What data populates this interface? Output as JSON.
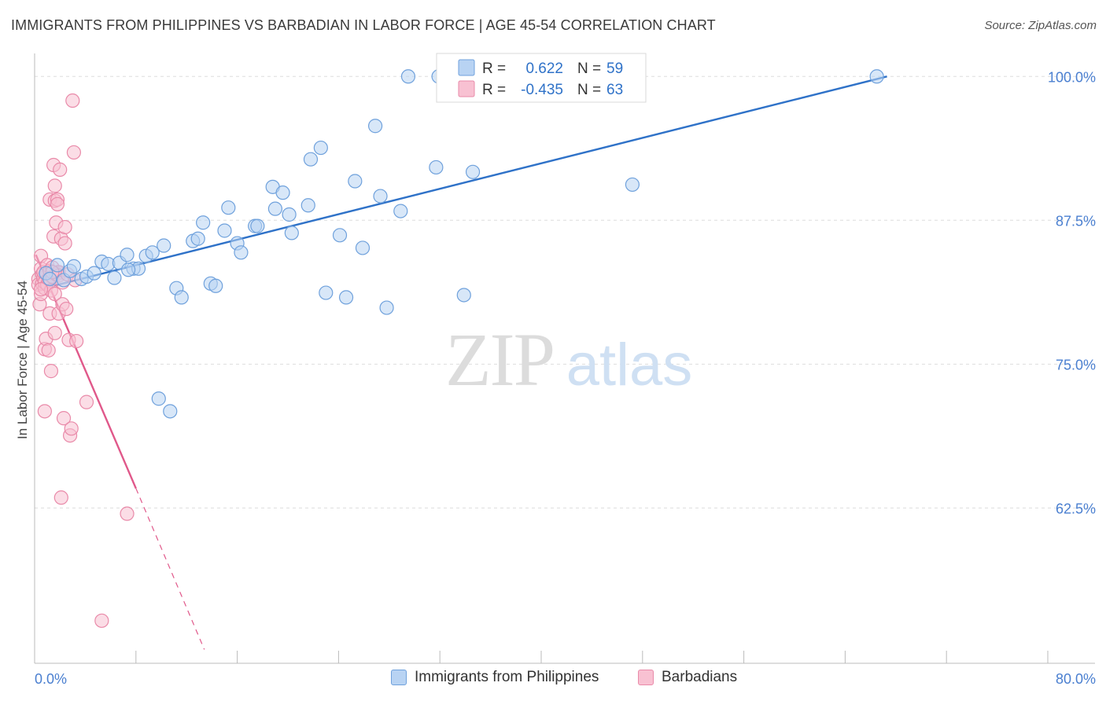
{
  "header": {
    "title": "IMMIGRANTS FROM PHILIPPINES VS BARBADIAN IN LABOR FORCE | AGE 45-54 CORRELATION CHART",
    "source": "Source: ZipAtlas.com"
  },
  "watermark": {
    "zip": "ZIP",
    "atlas": "atlas"
  },
  "colors": {
    "blue_fill": "#b8d3f3",
    "blue_stroke": "#6fa1dc",
    "blue_line": "#2f72c8",
    "pink_fill": "#f8c1d2",
    "pink_stroke": "#e98aa9",
    "pink_line": "#e0588a",
    "tick_label": "#4a7fd0",
    "grid": "#dddddd"
  },
  "legend_top": [
    {
      "r_label": "R =",
      "r_value": "0.622",
      "n_label": "N =",
      "n_value": "59"
    },
    {
      "r_label": "R =",
      "r_value": "-0.435",
      "n_label": "N =",
      "n_value": "63"
    }
  ],
  "legend_bottom": [
    {
      "label": "Immigrants from Philippines"
    },
    {
      "label": "Barbadians"
    }
  ],
  "chart_data": {
    "type": "scatter",
    "title": "IMMIGRANTS FROM PHILIPPINES VS BARBADIAN IN LABOR FORCE | AGE 45-54 CORRELATION CHART",
    "xlabel": "",
    "ylabel": "In Labor Force | Age 45-54",
    "xlim": [
      0,
      80
    ],
    "ylim": [
      49,
      102
    ],
    "x_tick_labels": [
      "0.0%",
      "80.0%"
    ],
    "y_ticks": [
      62.5,
      75.0,
      87.5,
      100.0
    ],
    "y_tick_labels": [
      "62.5%",
      "75.0%",
      "87.5%",
      "100.0%"
    ],
    "grid": true,
    "legend": "top-center",
    "series": [
      {
        "name": "Immigrants from Philippines",
        "color": "#6fa1dc",
        "trend": {
          "x": [
            0.4,
            67.3
          ],
          "y": [
            81.5,
            100.0
          ],
          "style": "solid"
        },
        "points": [
          [
            0.9,
            82.9
          ],
          [
            1.2,
            82.4
          ],
          [
            1.8,
            83.6
          ],
          [
            2.3,
            82.3
          ],
          [
            2.8,
            83.1
          ],
          [
            3.1,
            83.5
          ],
          [
            3.7,
            82.4
          ],
          [
            4.1,
            82.6
          ],
          [
            4.7,
            82.9
          ],
          [
            5.3,
            83.9
          ],
          [
            5.8,
            83.7
          ],
          [
            6.3,
            82.5
          ],
          [
            6.7,
            83.8
          ],
          [
            7.3,
            84.5
          ],
          [
            7.8,
            83.3
          ],
          [
            8.2,
            83.3
          ],
          [
            8.8,
            84.4
          ],
          [
            9.3,
            84.7
          ],
          [
            10.2,
            85.3
          ],
          [
            11.2,
            81.6
          ],
          [
            11.6,
            80.8
          ],
          [
            12.5,
            85.7
          ],
          [
            12.9,
            85.9
          ],
          [
            13.3,
            87.3
          ],
          [
            13.9,
            82.0
          ],
          [
            14.3,
            81.8
          ],
          [
            15.0,
            86.6
          ],
          [
            15.3,
            88.6
          ],
          [
            16.0,
            85.5
          ],
          [
            16.3,
            84.7
          ],
          [
            17.4,
            87.0
          ],
          [
            17.6,
            87.0
          ],
          [
            18.8,
            90.4
          ],
          [
            19.0,
            88.5
          ],
          [
            19.6,
            89.9
          ],
          [
            20.1,
            88.0
          ],
          [
            20.3,
            86.4
          ],
          [
            21.6,
            88.8
          ],
          [
            21.8,
            92.8
          ],
          [
            22.6,
            93.8
          ],
          [
            23.0,
            81.2
          ],
          [
            24.1,
            86.2
          ],
          [
            24.6,
            80.8
          ],
          [
            25.3,
            90.9
          ],
          [
            25.9,
            85.1
          ],
          [
            26.9,
            95.7
          ],
          [
            27.3,
            89.6
          ],
          [
            27.8,
            79.9
          ],
          [
            28.9,
            88.3
          ],
          [
            29.5,
            100.0
          ],
          [
            31.7,
            92.1
          ],
          [
            31.9,
            100.0
          ],
          [
            33.9,
            81.0
          ],
          [
            34.6,
            91.7
          ],
          [
            47.2,
            90.6
          ],
          [
            66.5,
            100.0
          ],
          [
            9.8,
            72.0
          ],
          [
            10.7,
            70.9
          ],
          [
            7.4,
            83.2
          ]
        ]
      },
      {
        "name": "Barbadians",
        "color": "#e98aa9",
        "trend": {
          "x": [
            0.1,
            8.0
          ],
          "y": [
            84.5,
            64.2
          ],
          "style": "solid",
          "extension": {
            "x": [
              8.0,
              13.4
            ],
            "y": [
              64.2,
              50.2
            ],
            "style": "dashed"
          }
        },
        "points": [
          [
            0.3,
            82.4
          ],
          [
            0.3,
            81.9
          ],
          [
            0.4,
            80.2
          ],
          [
            0.5,
            83.3
          ],
          [
            0.5,
            84.4
          ],
          [
            0.5,
            81.1
          ],
          [
            0.6,
            82.8
          ],
          [
            0.6,
            82.0
          ],
          [
            0.7,
            82.5
          ],
          [
            0.7,
            83.0
          ],
          [
            0.8,
            81.6
          ],
          [
            0.8,
            82.1
          ],
          [
            0.8,
            76.3
          ],
          [
            0.8,
            70.9
          ],
          [
            0.9,
            82.9
          ],
          [
            0.9,
            77.2
          ],
          [
            1.0,
            83.6
          ],
          [
            1.0,
            81.9
          ],
          [
            1.1,
            82.4
          ],
          [
            1.1,
            76.2
          ],
          [
            1.2,
            83.1
          ],
          [
            1.2,
            79.4
          ],
          [
            1.2,
            89.3
          ],
          [
            1.3,
            81.4
          ],
          [
            1.3,
            74.4
          ],
          [
            1.4,
            82.6
          ],
          [
            1.4,
            83.4
          ],
          [
            1.5,
            86.1
          ],
          [
            1.5,
            92.3
          ],
          [
            1.6,
            89.2
          ],
          [
            1.6,
            90.5
          ],
          [
            1.6,
            81.1
          ],
          [
            1.6,
            77.7
          ],
          [
            1.7,
            87.3
          ],
          [
            1.7,
            82.8
          ],
          [
            1.8,
            89.3
          ],
          [
            1.8,
            88.9
          ],
          [
            1.9,
            82.9
          ],
          [
            1.9,
            83.0
          ],
          [
            1.9,
            82.7
          ],
          [
            1.9,
            79.4
          ],
          [
            2.0,
            91.9
          ],
          [
            2.1,
            85.9
          ],
          [
            2.2,
            82.1
          ],
          [
            2.2,
            80.2
          ],
          [
            2.3,
            70.3
          ],
          [
            2.4,
            86.9
          ],
          [
            2.4,
            85.5
          ],
          [
            2.5,
            79.8
          ],
          [
            2.6,
            82.8
          ],
          [
            2.7,
            77.1
          ],
          [
            2.8,
            68.8
          ],
          [
            2.9,
            69.4
          ],
          [
            3.0,
            97.9
          ],
          [
            3.1,
            93.4
          ],
          [
            3.3,
            77.0
          ],
          [
            3.2,
            82.3
          ],
          [
            4.1,
            71.7
          ],
          [
            2.1,
            63.4
          ],
          [
            7.3,
            62.0
          ],
          [
            5.3,
            52.7
          ],
          [
            0.5,
            81.5
          ],
          [
            1.4,
            83.0
          ]
        ]
      }
    ]
  }
}
